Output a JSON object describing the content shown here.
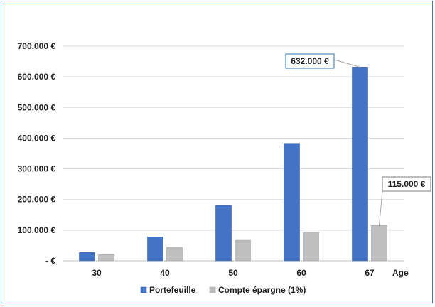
{
  "chart_data": {
    "type": "bar",
    "title": "",
    "xlabel": "Age",
    "ylabel": "",
    "categories": [
      "30",
      "40",
      "50",
      "60",
      "67"
    ],
    "series": [
      {
        "name": "Portefeuille",
        "color": "#4472c4",
        "values": [
          27000,
          78000,
          181000,
          383000,
          632000
        ]
      },
      {
        "name": "Compte épargne (1%)",
        "color": "#bfbfbf",
        "values": [
          20000,
          44000,
          67000,
          94000,
          115000
        ]
      }
    ],
    "ylim": [
      0,
      700000
    ],
    "yticks": [
      0,
      100000,
      200000,
      300000,
      400000,
      500000,
      600000,
      700000
    ],
    "ytick_labels": [
      "-  €",
      "100.000 €",
      "200.000 €",
      "300.000 €",
      "400.000 €",
      "500.000 €",
      "600.000 €",
      "700.000 €"
    ],
    "grid": true,
    "legend_position": "bottom",
    "annotations": [
      {
        "text": "632.000 €",
        "series": 0,
        "category": "67",
        "border_color": "#2e75b6"
      },
      {
        "text": "115.000 €",
        "series": 1,
        "category": "67",
        "border_color": "#7f7f7f"
      }
    ]
  }
}
